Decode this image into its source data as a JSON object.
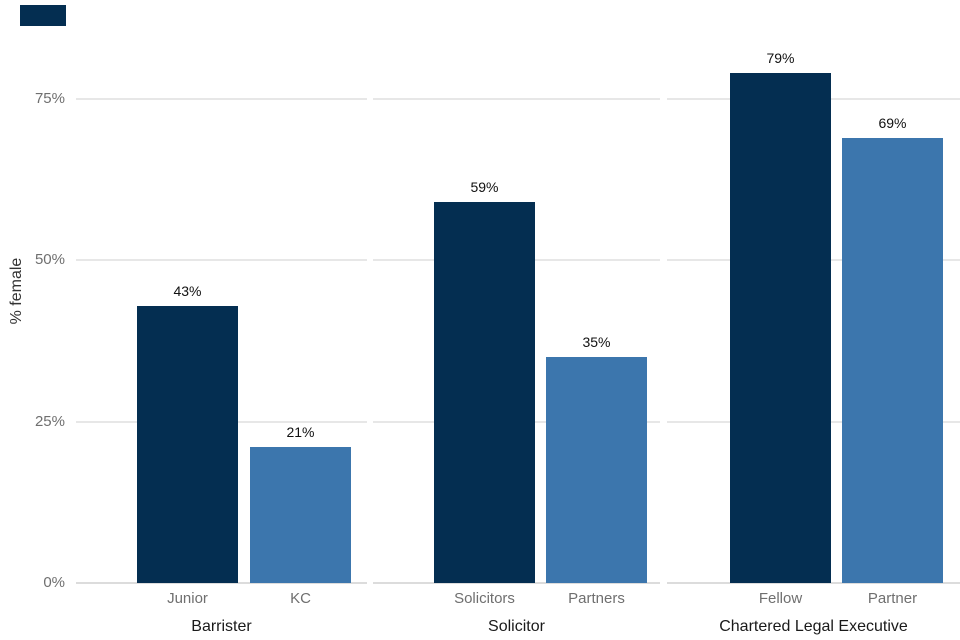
{
  "chart_data": {
    "type": "bar",
    "title": "",
    "xlabel": "",
    "ylabel": "% female",
    "ylim": [
      0,
      90
    ],
    "grid": true,
    "legend": "none",
    "y_ticks": [
      {
        "value": 0,
        "label": "0%"
      },
      {
        "value": 25,
        "label": "25%"
      },
      {
        "value": 50,
        "label": "50%"
      },
      {
        "value": 75,
        "label": "75%"
      }
    ],
    "facets": [
      {
        "label": "Barrister",
        "bars": [
          {
            "category": "Junior",
            "value": 43,
            "label": "43%",
            "series": "first"
          },
          {
            "category": "KC",
            "value": 21,
            "label": "21%",
            "series": "second"
          }
        ]
      },
      {
        "label": "Solicitor",
        "bars": [
          {
            "category": "Solicitors",
            "value": 59,
            "label": "59%",
            "series": "first"
          },
          {
            "category": "Partners",
            "value": 35,
            "label": "35%",
            "series": "second"
          }
        ]
      },
      {
        "label": "Chartered Legal Executive",
        "bars": [
          {
            "category": "Fellow",
            "value": 79,
            "label": "79%",
            "series": "first"
          },
          {
            "category": "Partner",
            "value": 69,
            "label": "69%",
            "series": "second"
          }
        ]
      }
    ],
    "series_colors": {
      "first": "#042E51",
      "second": "#3C76AD"
    },
    "gridline_color": "#E7E7E7",
    "axis_line_color": "#DCDCDC"
  },
  "decor": {
    "corner_mark_color": "#042E51"
  }
}
